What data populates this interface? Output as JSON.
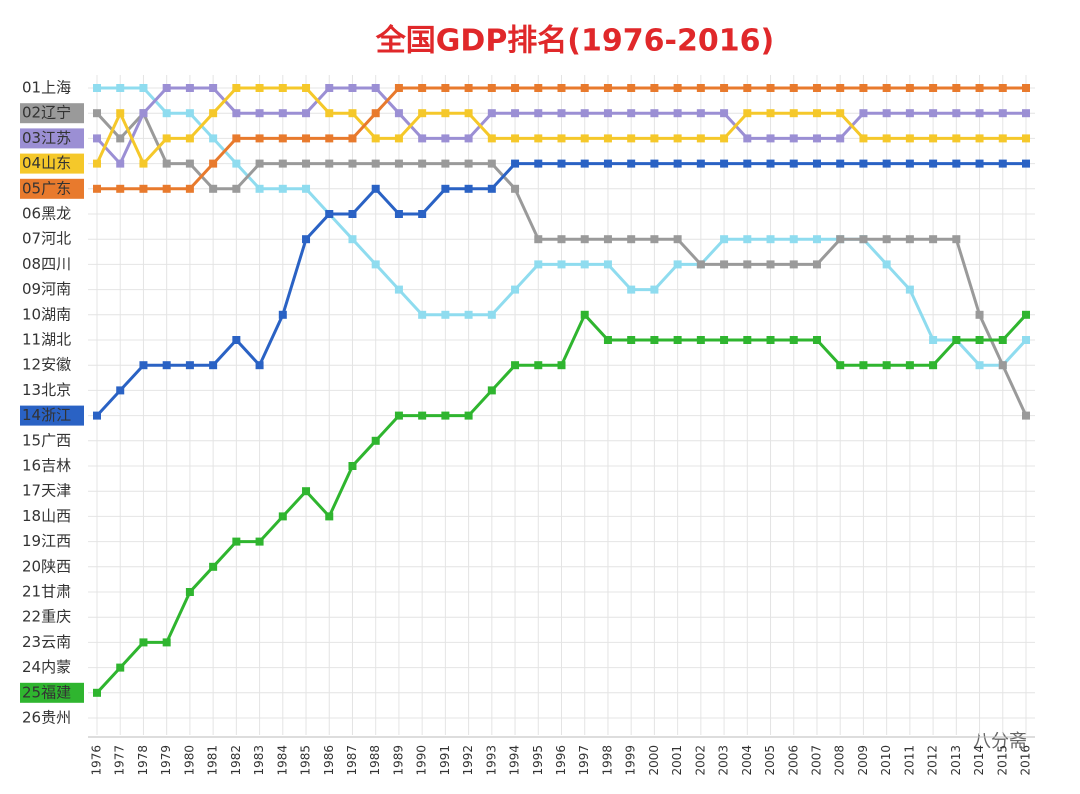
{
  "chart_data": {
    "type": "line",
    "title": "全国GDP排名(1976-2016)",
    "watermark": "八分斋",
    "categories": [
      "1976",
      "1977",
      "1978",
      "1979",
      "1980",
      "1981",
      "1982",
      "1983",
      "1984",
      "1985",
      "1986",
      "1987",
      "1988",
      "1989",
      "1990",
      "1991",
      "1992",
      "1993",
      "1994",
      "1995",
      "1996",
      "1997",
      "1998",
      "1999",
      "2000",
      "2001",
      "2002",
      "2003",
      "2004",
      "2005",
      "2006",
      "2007",
      "2008",
      "2009",
      "2010",
      "2011",
      "2012",
      "2013",
      "2014",
      "2015",
      "2016"
    ],
    "ylim": [
      26.5,
      0.5
    ],
    "yticks": [
      {
        "value": 1,
        "label": "01上海"
      },
      {
        "value": 2,
        "label": "02辽宁"
      },
      {
        "value": 3,
        "label": "03江苏"
      },
      {
        "value": 4,
        "label": "04山东"
      },
      {
        "value": 5,
        "label": "05广东"
      },
      {
        "value": 6,
        "label": "06黑龙"
      },
      {
        "value": 7,
        "label": "07河北"
      },
      {
        "value": 8,
        "label": "08四川"
      },
      {
        "value": 9,
        "label": "09河南"
      },
      {
        "value": 10,
        "label": "10湖南"
      },
      {
        "value": 11,
        "label": "11湖北"
      },
      {
        "value": 12,
        "label": "12安徽"
      },
      {
        "value": 13,
        "label": "13北京"
      },
      {
        "value": 14,
        "label": "14浙江"
      },
      {
        "value": 15,
        "label": "15广西"
      },
      {
        "value": 16,
        "label": "16吉林"
      },
      {
        "value": 17,
        "label": "17天津"
      },
      {
        "value": 18,
        "label": "18山西"
      },
      {
        "value": 19,
        "label": "19江西"
      },
      {
        "value": 20,
        "label": "20陕西"
      },
      {
        "value": 21,
        "label": "21甘肃"
      },
      {
        "value": 22,
        "label": "22重庆"
      },
      {
        "value": 23,
        "label": "23云南"
      },
      {
        "value": 24,
        "label": "24内蒙"
      },
      {
        "value": 25,
        "label": "25福建"
      },
      {
        "value": 26,
        "label": "26贵州"
      }
    ],
    "grid": true,
    "series": [
      {
        "color": "#8fdcef",
        "highlight": false,
        "values": [
          1,
          1,
          1,
          2,
          2,
          3,
          4,
          5,
          5,
          5,
          6,
          7,
          8,
          9,
          10,
          10,
          10,
          10,
          9,
          8,
          8,
          8,
          8,
          9,
          9,
          8,
          8,
          7,
          7,
          7,
          7,
          7,
          7,
          7,
          8,
          9,
          11,
          11,
          12,
          12,
          11
        ]
      },
      {
        "color": "#9a9a9a",
        "highlight": true,
        "values": [
          2,
          3,
          2,
          4,
          4,
          5,
          5,
          4,
          4,
          4,
          4,
          4,
          4,
          4,
          4,
          4,
          4,
          4,
          5,
          7,
          7,
          7,
          7,
          7,
          7,
          7,
          8,
          8,
          8,
          8,
          8,
          8,
          7,
          7,
          7,
          7,
          7,
          7,
          10,
          12,
          14
        ]
      },
      {
        "color": "#9b8fd4",
        "highlight": true,
        "values": [
          3,
          4,
          2,
          1,
          1,
          1,
          2,
          2,
          2,
          2,
          1,
          1,
          1,
          2,
          3,
          3,
          3,
          2,
          2,
          2,
          2,
          2,
          2,
          2,
          2,
          2,
          2,
          2,
          3,
          3,
          3,
          3,
          3,
          2,
          2,
          2,
          2,
          2,
          2,
          2,
          2
        ]
      },
      {
        "color": "#f5c82a",
        "highlight": true,
        "values": [
          4,
          2,
          4,
          3,
          3,
          2,
          1,
          1,
          1,
          1,
          2,
          2,
          3,
          3,
          2,
          2,
          2,
          3,
          3,
          3,
          3,
          3,
          3,
          3,
          3,
          3,
          3,
          3,
          2,
          2,
          2,
          2,
          2,
          3,
          3,
          3,
          3,
          3,
          3,
          3,
          3
        ]
      },
      {
        "color": "#e87a2d",
        "highlight": true,
        "values": [
          5,
          5,
          5,
          5,
          5,
          4,
          3,
          3,
          3,
          3,
          3,
          3,
          2,
          1,
          1,
          1,
          1,
          1,
          1,
          1,
          1,
          1,
          1,
          1,
          1,
          1,
          1,
          1,
          1,
          1,
          1,
          1,
          1,
          1,
          1,
          1,
          1,
          1,
          1,
          1,
          1
        ]
      },
      {
        "color": "#2a62c4",
        "highlight": true,
        "values": [
          14,
          13,
          12,
          12,
          12,
          12,
          11,
          12,
          10,
          7,
          6,
          6,
          5,
          6,
          6,
          5,
          5,
          5,
          4,
          4,
          4,
          4,
          4,
          4,
          4,
          4,
          4,
          4,
          4,
          4,
          4,
          4,
          4,
          4,
          4,
          4,
          4,
          4,
          4,
          4,
          4
        ]
      },
      {
        "color": "#2fb52f",
        "highlight": true,
        "values": [
          25,
          24,
          23,
          23,
          21,
          20,
          19,
          19,
          18,
          17,
          18,
          16,
          15,
          14,
          14,
          14,
          14,
          13,
          12,
          12,
          12,
          10,
          11,
          11,
          11,
          11,
          11,
          11,
          11,
          11,
          11,
          11,
          12,
          12,
          12,
          12,
          12,
          11,
          11,
          11,
          10
        ]
      }
    ]
  }
}
